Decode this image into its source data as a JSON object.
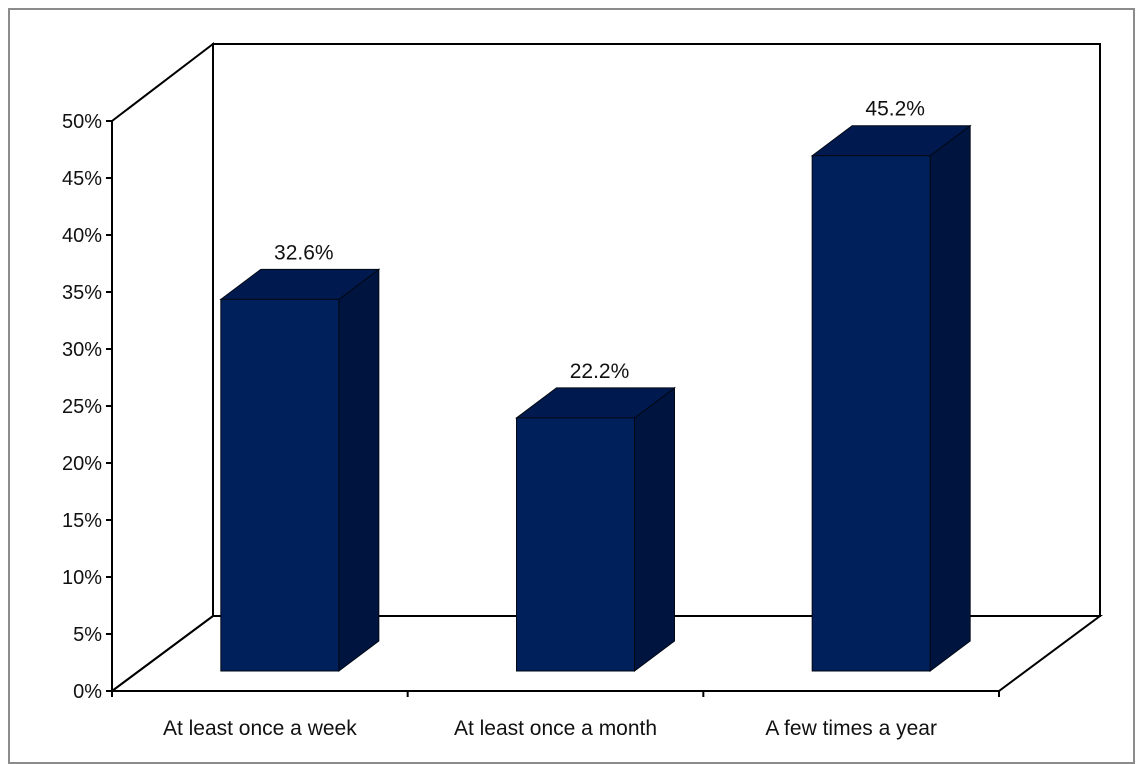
{
  "chart_data": {
    "type": "bar",
    "title": "",
    "xlabel": "",
    "ylabel": "",
    "categories": [
      "At least once a week",
      "At least once a month",
      "A few times a year"
    ],
    "values": [
      32.6,
      22.2,
      45.2
    ],
    "data_labels": [
      "32.6%",
      "22.2%",
      "45.2%"
    ],
    "ylim": [
      0,
      50
    ],
    "y_ticks": [
      0,
      5,
      10,
      15,
      20,
      25,
      30,
      35,
      40,
      45,
      50
    ],
    "y_tick_labels": [
      "0%",
      "5%",
      "10%",
      "15%",
      "20%",
      "25%",
      "30%",
      "35%",
      "40%",
      "45%",
      "50%"
    ],
    "grid": false,
    "legend": "none",
    "style": "3d-column",
    "colors": {
      "bar_front": "#00205c",
      "bar_side": "#001440",
      "bar_top": "#001a4f"
    }
  }
}
